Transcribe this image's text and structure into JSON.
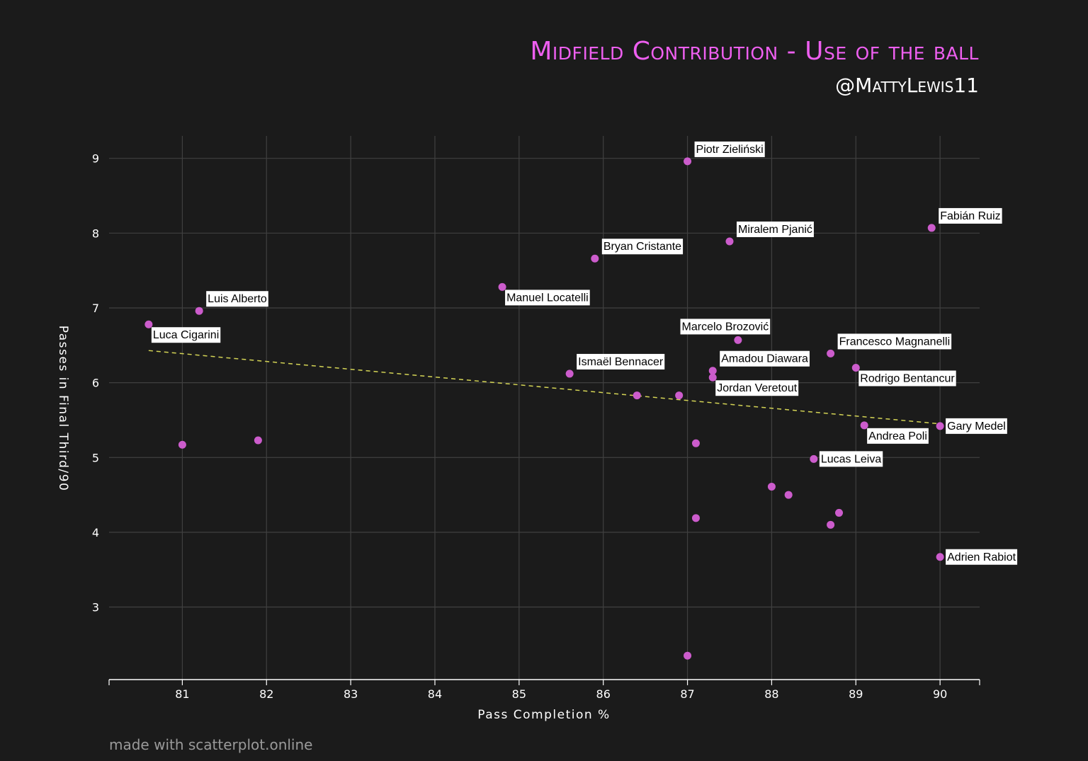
{
  "title": "Midfield Contribution - Use of the ball",
  "subtitle": "@MattyLewis11",
  "credit": "made with scatterplot.online",
  "colors": {
    "background": "#1b1b1b",
    "points": "#cc5ccc",
    "trend": "#d4d455",
    "title": "#ee5ff0",
    "grid": "#404040"
  },
  "chart_data": {
    "type": "scatter",
    "xlabel": "Pass Completion %",
    "ylabel": "Passes in Final Third/90",
    "xlim": [
      80.13,
      90.47
    ],
    "ylim": [
      2.03,
      9.3
    ],
    "xticks": [
      81,
      82,
      83,
      84,
      85,
      86,
      87,
      88,
      89,
      90
    ],
    "yticks": [
      3,
      4,
      5,
      6,
      7,
      8,
      9
    ],
    "grid": true,
    "trendline": {
      "x": [
        80.6,
        90.0
      ],
      "y": [
        6.43,
        5.45
      ]
    },
    "points": [
      {
        "x": 87.0,
        "y": 8.96,
        "label": "Piotr Zieliński",
        "label_pos": "above-right"
      },
      {
        "x": 89.9,
        "y": 8.07,
        "label": "Fabián Ruiz",
        "label_pos": "above-right"
      },
      {
        "x": 87.5,
        "y": 7.89,
        "label": "Miralem Pjanić",
        "label_pos": "above-right"
      },
      {
        "x": 85.9,
        "y": 7.66,
        "label": "Bryan Cristante",
        "label_pos": "above-right"
      },
      {
        "x": 84.8,
        "y": 7.28,
        "label": "Manuel Locatelli",
        "label_pos": "below-right"
      },
      {
        "x": 81.2,
        "y": 6.96,
        "label": "Luis Alberto",
        "label_pos": "above-right"
      },
      {
        "x": 80.6,
        "y": 6.78,
        "label": "Luca Cigarini",
        "label_pos": "below-right"
      },
      {
        "x": 87.6,
        "y": 6.57,
        "label": "Marcelo Brozović",
        "label_pos": "above"
      },
      {
        "x": 88.7,
        "y": 6.39,
        "label": "Francesco Magnanelli",
        "label_pos": "above-right"
      },
      {
        "x": 89.0,
        "y": 6.2,
        "label": "Rodrigo Bentancur",
        "label_pos": "below-right"
      },
      {
        "x": 87.3,
        "y": 6.16,
        "label": "Amadou Diawara",
        "label_pos": "above-right"
      },
      {
        "x": 85.6,
        "y": 6.12,
        "label": "Ismaël Bennacer",
        "label_pos": "above-right"
      },
      {
        "x": 87.3,
        "y": 6.07,
        "label": "Jordan Veretout",
        "label_pos": "below-right"
      },
      {
        "x": 86.4,
        "y": 5.83,
        "label": ""
      },
      {
        "x": 86.9,
        "y": 5.83,
        "label": ""
      },
      {
        "x": 89.1,
        "y": 5.43,
        "label": "Andrea Poli",
        "label_pos": "below-right"
      },
      {
        "x": 90.0,
        "y": 5.42,
        "label": "Gary Medel",
        "label_pos": "right"
      },
      {
        "x": 81.9,
        "y": 5.23,
        "label": ""
      },
      {
        "x": 87.1,
        "y": 5.19,
        "label": ""
      },
      {
        "x": 81.0,
        "y": 5.17,
        "label": ""
      },
      {
        "x": 88.5,
        "y": 4.98,
        "label": "Lucas Leiva",
        "label_pos": "right"
      },
      {
        "x": 88.0,
        "y": 4.61,
        "label": ""
      },
      {
        "x": 88.2,
        "y": 4.5,
        "label": ""
      },
      {
        "x": 88.8,
        "y": 4.26,
        "label": ""
      },
      {
        "x": 87.1,
        "y": 4.19,
        "label": ""
      },
      {
        "x": 88.7,
        "y": 4.1,
        "label": ""
      },
      {
        "x": 90.0,
        "y": 3.67,
        "label": "Adrien Rabiot",
        "label_pos": "right"
      },
      {
        "x": 87.0,
        "y": 2.35,
        "label": ""
      }
    ]
  }
}
